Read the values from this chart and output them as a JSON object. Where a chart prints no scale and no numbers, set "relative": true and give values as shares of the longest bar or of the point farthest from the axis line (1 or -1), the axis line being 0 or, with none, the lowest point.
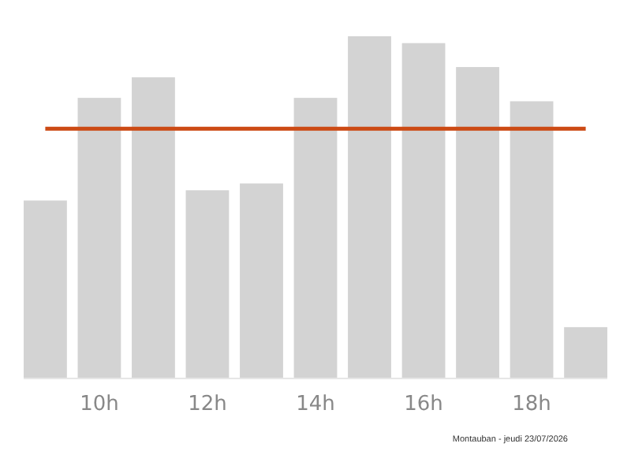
{
  "chart_data": {
    "type": "bar",
    "relative": true,
    "categories": [
      null,
      "10h",
      null,
      "12h",
      null,
      "14h",
      null,
      "16h",
      null,
      "18h",
      null
    ],
    "values": [
      0.52,
      0.82,
      0.88,
      0.55,
      0.57,
      0.82,
      1,
      0.98,
      0.91,
      0.81,
      0.15
    ],
    "color": "#d3d3d3",
    "ref_lines": [
      {
        "axis": "y",
        "value": 0.73,
        "color": "#cc4a14"
      }
    ],
    "annotations": [
      "Montauban - jeudi 23/07/2026"
    ]
  }
}
